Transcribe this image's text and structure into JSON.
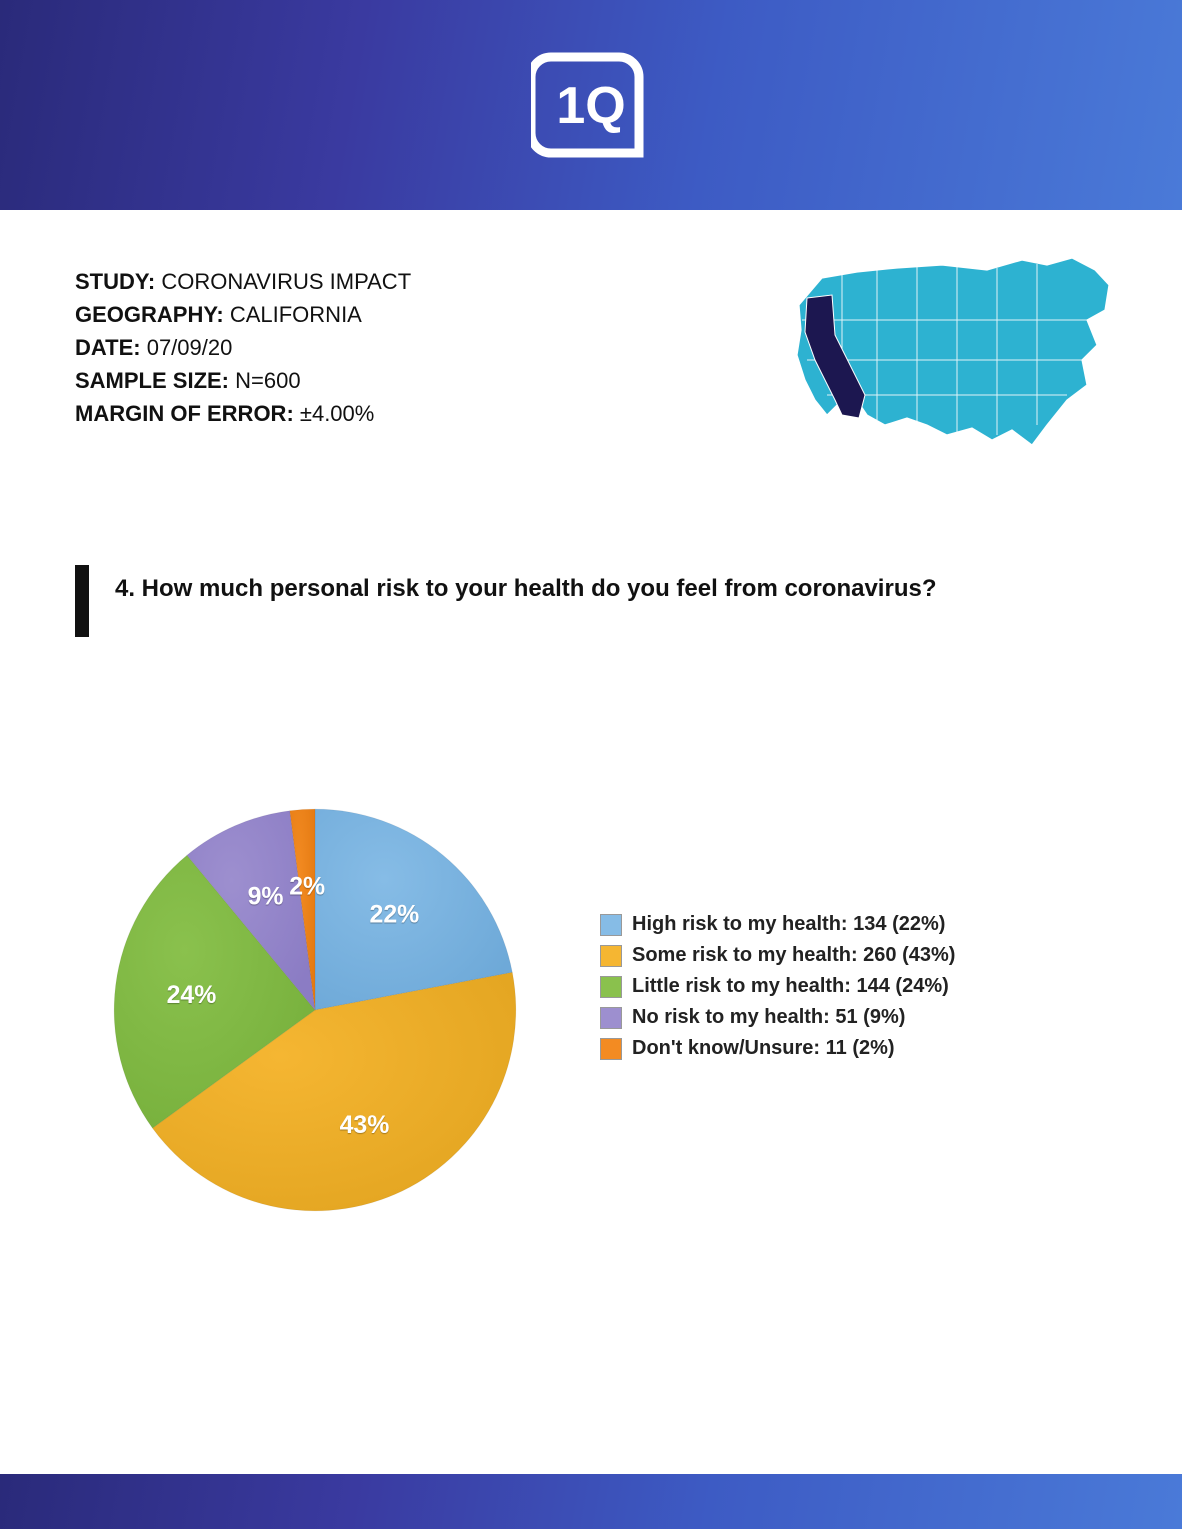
{
  "logo_text": "1Q",
  "meta": {
    "study_label": "STUDY:",
    "study_value": " CORONAVIRUS IMPACT",
    "geography_label": "GEOGRAPHY:",
    "geography_value": " CALIFORNIA",
    "date_label": "DATE:",
    "date_value": " 07/09/20",
    "sample_label": "SAMPLE SIZE:",
    "sample_value": " N=600",
    "moe_label": "MARGIN OF ERROR:",
    "moe_value": " ±4.00%"
  },
  "question": "4. How much personal risk to your health do you feel from coronavirus?",
  "chart": {
    "type": "pie",
    "background_color": "#ffffff",
    "radius": 210,
    "label_color": "#ffffff",
    "label_fontsize": 26,
    "slices": [
      {
        "label": "High risk to my health",
        "count": 134,
        "percent": 22,
        "color": "#86bce6",
        "color_dark": "#6ea9d8"
      },
      {
        "label": "Some risk to my health",
        "count": 260,
        "percent": 43,
        "color": "#f5b632",
        "color_dark": "#e3a521"
      },
      {
        "label": "Little risk to my health",
        "count": 144,
        "percent": 24,
        "color": "#8ac14d",
        "color_dark": "#77b03c"
      },
      {
        "label": "No risk to my health",
        "count": 51,
        "percent": 9,
        "color": "#9d8fcf",
        "color_dark": "#8b7cc4"
      },
      {
        "label": "Don't know/Unsure",
        "count": 11,
        "percent": 2,
        "color": "#f38b22",
        "color_dark": "#e47a12"
      }
    ]
  },
  "legend_items": [
    {
      "text": "High risk to my health: 134 (22%)",
      "swatch": "#86bce6"
    },
    {
      "text": "Some risk to my health: 260 (43%)",
      "swatch": "#f5b632"
    },
    {
      "text": "Little risk to my health: 144 (24%)",
      "swatch": "#8ac14d"
    },
    {
      "text": "No risk to my health: 51 (9%)",
      "swatch": "#9d8fcf"
    },
    {
      "text": "Don't know/Unsure: 11 (2%)",
      "swatch": "#f38b22"
    }
  ],
  "map": {
    "fill": "#2db2d1",
    "highlight": "#1c1750"
  },
  "header_gradient": [
    "#2a2a7a",
    "#3a3aa0",
    "#3d5bc4",
    "#4a7ad8"
  ]
}
